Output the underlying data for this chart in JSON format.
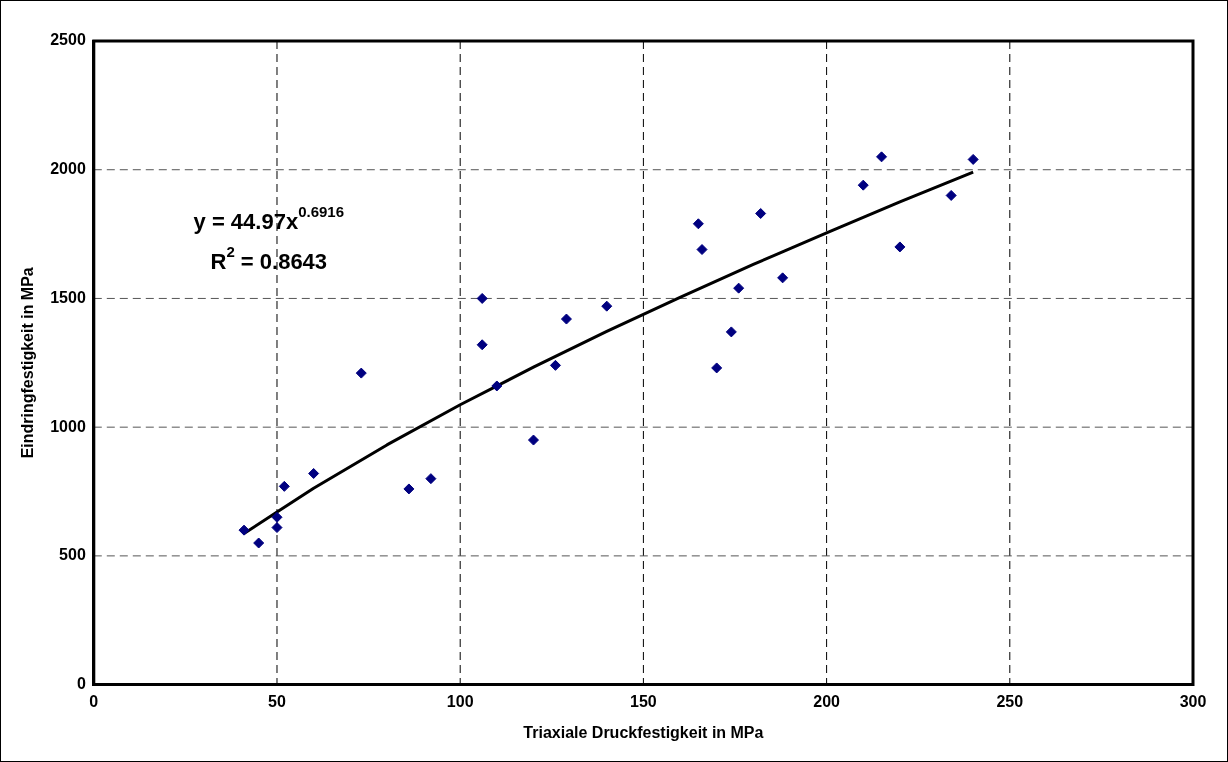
{
  "chart_data": {
    "type": "scatter",
    "xlabel": "Triaxiale Druckfestigkeit in MPa",
    "ylabel": "Eindringfestigkeit in MPa",
    "annotations": [
      "y = 44.97x$^{0.6916}$",
      "R$^{2}$ = 0.8643"
    ],
    "series": [
      {
        "color": "#000080",
        "marker": "diamond",
        "x": [
          41,
          45,
          50,
          50,
          52,
          60,
          73,
          86,
          92,
          106,
          106,
          110,
          120,
          126,
          129,
          140,
          165,
          166,
          170,
          174,
          176,
          182,
          188,
          210,
          215,
          220,
          234,
          240
        ],
        "values": [
          600,
          550,
          650,
          610,
          770,
          820,
          1210,
          760,
          800,
          1500,
          1320,
          1160,
          950,
          1240,
          1420,
          1470,
          1790,
          1690,
          1230,
          1370,
          1540,
          1830,
          1580,
          1940,
          2050,
          1700,
          1900,
          2040
        ]
      },
      {
        "type": "line",
        "color": "#000000",
        "marker": "none",
        "x": [
          41,
          60,
          80,
          100,
          120,
          140,
          160,
          180,
          200,
          220,
          240
        ],
        "values": [
          587,
          763,
          931,
          1087,
          1233,
          1372,
          1504,
          1632,
          1755,
          1875,
          1991
        ]
      }
    ],
    "xlim": [
      0,
      300
    ],
    "xticks": [
      0,
      50,
      100,
      150,
      200,
      250,
      300
    ],
    "ylim": [
      0,
      2500
    ],
    "yticks": [
      0,
      500,
      1000,
      1500,
      2000,
      2500
    ],
    "grid": true,
    "legend": false
  }
}
